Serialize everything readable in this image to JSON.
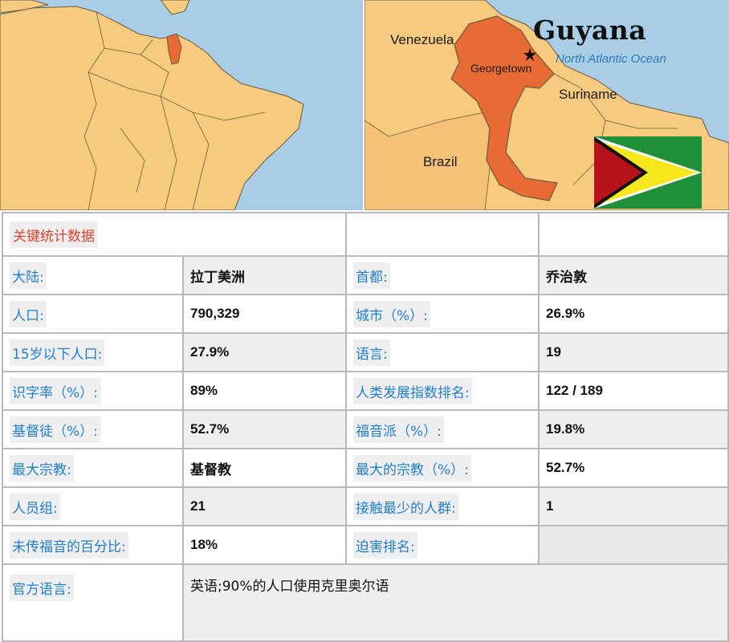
{
  "map": {
    "title": "Guyana",
    "ocean_label": "North Atlantic Ocean",
    "labels": {
      "venezuela": "Venezuela",
      "georgetown": "Georgetown",
      "suriname": "Suriname",
      "brazil": "Brazil"
    },
    "colors": {
      "sea": "#a9cde6",
      "land": "#f7cb7f",
      "highlight": "#e86a34",
      "border": "#6c5a3a"
    }
  },
  "flag": {
    "colors": {
      "green": "#1f8f3a",
      "yellow": "#f6e81c",
      "red": "#b51319",
      "black": "#111111",
      "white": "#ffffff"
    }
  },
  "table": {
    "header": "关键统计数据",
    "rows": [
      {
        "k1": "大陆:",
        "v1": "拉丁美洲",
        "k2": "首都:",
        "v2": "乔治敦"
      },
      {
        "k1": "人口:",
        "v1": "790,329",
        "k2": "城市（%）:",
        "v2": "26.9%"
      },
      {
        "k1": "15岁以下人口:",
        "v1": "27.9%",
        "k2": "语言:",
        "v2": "19"
      },
      {
        "k1": "识字率（%）:",
        "v1": "89%",
        "k2": "人类发展指数排名:",
        "v2": "122 / 189"
      },
      {
        "k1": "基督徒（%）:",
        "v1": "52.7%",
        "k2": "福音派（%）:",
        "v2": "19.8%"
      },
      {
        "k1": "最大宗教:",
        "v1": "基督教",
        "k2": "最大的宗教（%）:",
        "v2": "52.7%"
      },
      {
        "k1": "人员组:",
        "v1": "21",
        "k2": "接触最少的人群:",
        "v2": "1"
      },
      {
        "k1": "未传福音的百分比:",
        "v1": "18%",
        "k2": "迫害排名:",
        "v2": ""
      }
    ],
    "official_language_key": "官方语言:",
    "official_language_value": "英语;90%的人口使用克里奥尔语"
  }
}
